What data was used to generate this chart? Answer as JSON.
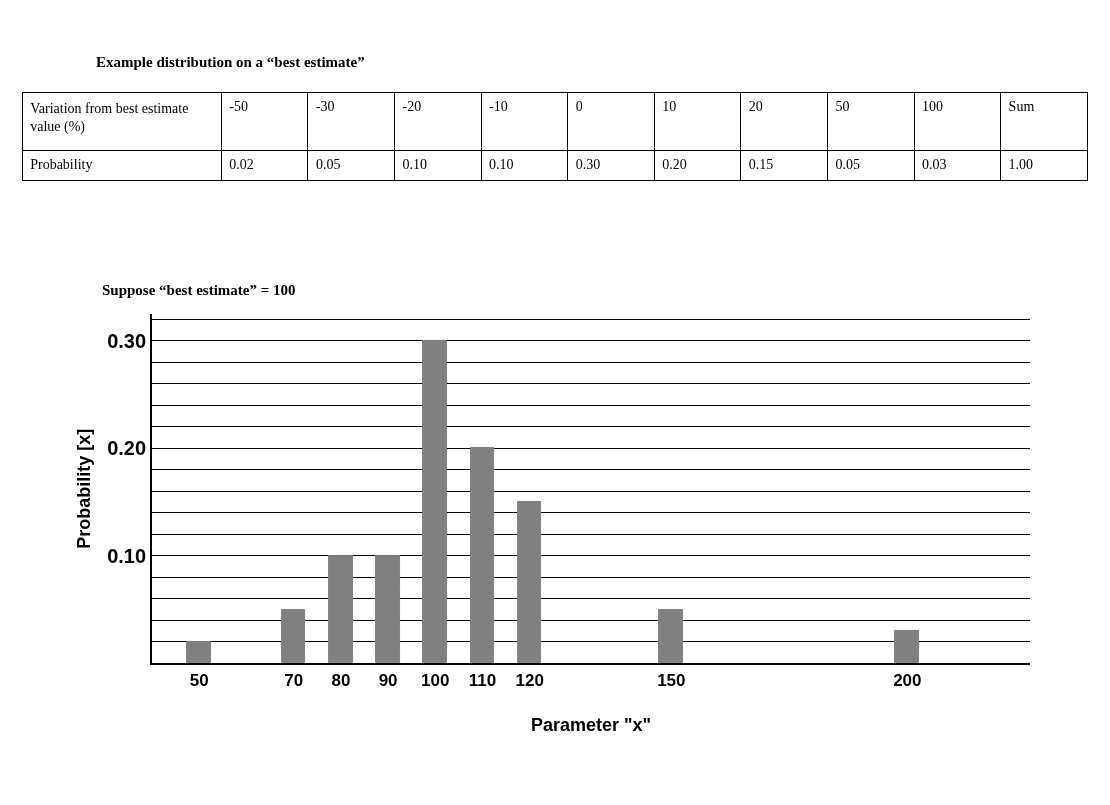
{
  "chart_data": {
    "type": "bar",
    "title": "Example distribution on a “best estimate”",
    "subtitle": "Suppose “best estimate” = 100",
    "xlabel": "Parameter \"x\"",
    "ylabel": "Probability [x]",
    "x": [
      50,
      70,
      80,
      90,
      100,
      110,
      120,
      150,
      200
    ],
    "values": [
      0.02,
      0.05,
      0.1,
      0.1,
      0.3,
      0.2,
      0.15,
      0.05,
      0.03
    ],
    "color": "#808080",
    "annotations": [
      "Variation from best estimate value (%)",
      "-50",
      "-30",
      "-20",
      "-10",
      "0",
      "10",
      "20",
      "50",
      "100",
      "Sum",
      "Probability",
      "0.02",
      "0.05",
      "0.10",
      "0.10",
      "0.30",
      "0.20",
      "0.15",
      "0.05",
      "0.03",
      "1.00"
    ],
    "xlim": [
      40,
      226
    ],
    "xticks": [
      50,
      70,
      80,
      90,
      100,
      110,
      120,
      150,
      200
    ],
    "ylim": [
      0,
      0.325
    ],
    "yticks": [
      {
        "value": 0.02,
        "label": null
      },
      {
        "value": 0.04,
        "label": null
      },
      {
        "value": 0.06,
        "label": null
      },
      {
        "value": 0.08,
        "label": null
      },
      {
        "value": 0.1,
        "label": "0.10"
      },
      {
        "value": 0.12,
        "label": null
      },
      {
        "value": 0.14,
        "label": null
      },
      {
        "value": 0.16,
        "label": null
      },
      {
        "value": 0.18,
        "label": null
      },
      {
        "value": 0.2,
        "label": "0.20"
      },
      {
        "value": 0.22,
        "label": null
      },
      {
        "value": 0.24,
        "label": null
      },
      {
        "value": 0.26,
        "label": null
      },
      {
        "value": 0.28,
        "label": null
      },
      {
        "value": 0.3,
        "label": "0.30"
      },
      {
        "value": 0.32,
        "label": null
      }
    ],
    "grid": "y"
  }
}
